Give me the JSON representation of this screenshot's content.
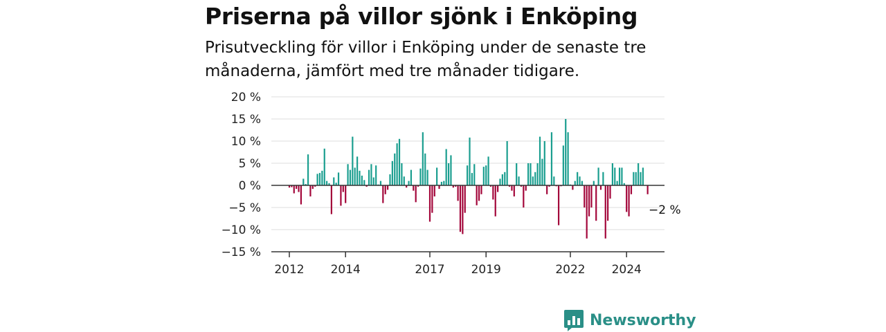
{
  "header": {
    "title": "Priserna på villor sjönk i Enköping",
    "subtitle": "Prisutveckling för villor i Enköping under de senaste tre månaderna, jämfört med tre månader tidigare."
  },
  "brand": {
    "name": "Newsworthy",
    "icon": "bar-chart-logo-icon"
  },
  "colors": {
    "positive": "#1a9e8f",
    "negative": "#a3063a",
    "grid": "#dddddd",
    "axis": "#333333"
  },
  "chart_data": {
    "type": "bar",
    "unit": "%",
    "yticks": [
      20,
      15,
      10,
      5,
      0,
      -5,
      -10,
      -15
    ],
    "ytick_labels": [
      "20 %",
      "15 %",
      "10 %",
      "5 %",
      "0 %",
      "−5 %",
      "−10 %",
      "−15 %"
    ],
    "xticks": [
      2012,
      2014,
      2017,
      2019,
      2022,
      2024
    ],
    "xtick_labels": [
      "2012",
      "2014",
      "2017",
      "2019",
      "2022",
      "2024"
    ],
    "ylim": [
      -15,
      20
    ],
    "x_start": "2012-01",
    "x_step": "month",
    "last_value_label": "−2 %",
    "values": [
      -0.5,
      -0.4,
      -1.8,
      -0.8,
      -1.5,
      -4.3,
      1.5,
      0.3,
      7.0,
      -2.5,
      -0.8,
      -0.3,
      2.6,
      2.8,
      3.3,
      8.3,
      1.0,
      0.5,
      -6.5,
      1.8,
      0.6,
      2.9,
      -4.6,
      -1.5,
      -4.0,
      4.8,
      3.5,
      11.0,
      4.0,
      6.5,
      3.3,
      2.2,
      1.2,
      -0.3,
      3.5,
      4.8,
      1.8,
      4.5,
      0.2,
      1.0,
      -4.0,
      -2.0,
      -1.0,
      2.5,
      5.5,
      7.2,
      9.5,
      10.5,
      5.0,
      2.0,
      -0.5,
      1.0,
      3.5,
      -1.2,
      -3.8,
      -0.3,
      3.8,
      12.0,
      7.2,
      3.5,
      -8.2,
      -6.2,
      -2.5,
      4.0,
      -0.8,
      0.8,
      1.0,
      8.2,
      5.0,
      6.8,
      -0.5,
      -0.3,
      -3.5,
      -10.5,
      -11.0,
      -6.2,
      4.5,
      10.8,
      2.8,
      4.8,
      -4.5,
      -3.5,
      -2.0,
      4.2,
      4.5,
      6.5,
      -0.3,
      -3.2,
      -7.0,
      -1.5,
      1.5,
      2.5,
      3.0,
      10.0,
      -0.3,
      -1.2,
      -2.5,
      5.0,
      2.0,
      -0.3,
      -5.0,
      -1.2,
      5.0,
      5.0,
      2.0,
      3.0,
      5.0,
      11.0,
      6.0,
      10.0,
      -2.0,
      -0.3,
      12.0,
      2.0,
      -0.2,
      -9.0,
      -0.2,
      9.0,
      15.0,
      12.0,
      0.2,
      -1.0,
      1.0,
      3.0,
      2.0,
      1.0,
      -5.0,
      -12.0,
      -7.0,
      -5.0,
      1.0,
      -8.0,
      4.0,
      -1.0,
      3.0,
      -12.0,
      -8.0,
      -3.0,
      5.0,
      4.0,
      1.0,
      4.0,
      4.0,
      0.5,
      -6.0,
      -7.0,
      -2.0,
      3.0,
      3.0,
      5.0,
      3.0,
      4.0,
      0.0,
      -2.0
    ]
  }
}
